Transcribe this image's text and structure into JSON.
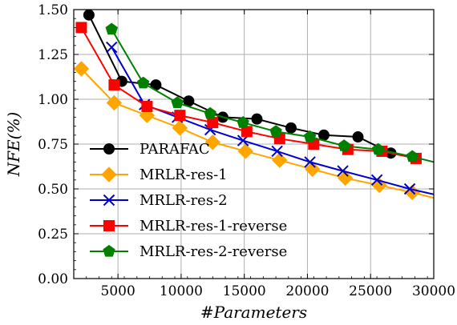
{
  "chart_data": {
    "type": "line",
    "xlabel": "#Parameters",
    "ylabel": "NFE(%)",
    "xlim": [
      1500,
      30000
    ],
    "ylim": [
      0.0,
      1.5
    ],
    "xticks": [
      5000,
      10000,
      15000,
      20000,
      25000,
      30000
    ],
    "xtick_labels": [
      "5000",
      "10000",
      "15000",
      "20000",
      "25000",
      "30000"
    ],
    "yticks": [
      0.0,
      0.25,
      0.5,
      0.75,
      1.0,
      1.25,
      1.5
    ],
    "ytick_labels": [
      "0.00",
      "0.25",
      "0.50",
      "0.75",
      "1.00",
      "1.25",
      "1.50"
    ],
    "grid": true,
    "legend_position": "lower-left",
    "series": [
      {
        "name": "PARAFAC",
        "color": "#000000",
        "marker": "circle",
        "x": [
          2700,
          5300,
          8000,
          10600,
          13300,
          16000,
          18700,
          21300,
          24000,
          26600
        ],
        "y": [
          1.47,
          1.1,
          1.08,
          0.99,
          0.9,
          0.89,
          0.84,
          0.8,
          0.79,
          0.7
        ]
      },
      {
        "name": "MRLR-res-1",
        "color": "#FFA500",
        "marker": "diamond",
        "x": [
          2100,
          4700,
          7300,
          9900,
          12500,
          15100,
          17800,
          20400,
          23000,
          25700,
          28300
        ],
        "y": [
          1.17,
          0.98,
          0.91,
          0.84,
          0.76,
          0.71,
          0.66,
          0.61,
          0.56,
          0.52,
          0.48
        ],
        "extends_to": [
          30000,
          0.45
        ]
      },
      {
        "name": "MRLR-res-2",
        "color": "#0000CC",
        "marker": "x",
        "x": [
          4500,
          7100,
          9700,
          12300,
          14900,
          17600,
          20200,
          22800,
          25500,
          28100
        ],
        "y": [
          1.29,
          0.97,
          0.9,
          0.83,
          0.77,
          0.71,
          0.65,
          0.6,
          0.55,
          0.5
        ],
        "extends_to": [
          30000,
          0.47
        ]
      },
      {
        "name": "MRLR-res-1-reverse",
        "color": "#FF0000",
        "marker": "square",
        "x": [
          2100,
          4700,
          7300,
          9900,
          12500,
          15200,
          17800,
          20500,
          23200,
          25900,
          28600
        ],
        "y": [
          1.4,
          1.08,
          0.96,
          0.91,
          0.87,
          0.82,
          0.78,
          0.75,
          0.72,
          0.71,
          0.67
        ]
      },
      {
        "name": "MRLR-res-2-reverse",
        "color": "#008000",
        "marker": "pentagon",
        "x": [
          4500,
          7000,
          9700,
          12300,
          14900,
          17500,
          20200,
          22900,
          25600,
          28300
        ],
        "y": [
          1.39,
          1.09,
          0.98,
          0.92,
          0.87,
          0.82,
          0.79,
          0.74,
          0.72,
          0.68
        ],
        "extends_to": [
          30000,
          0.65
        ]
      }
    ]
  }
}
